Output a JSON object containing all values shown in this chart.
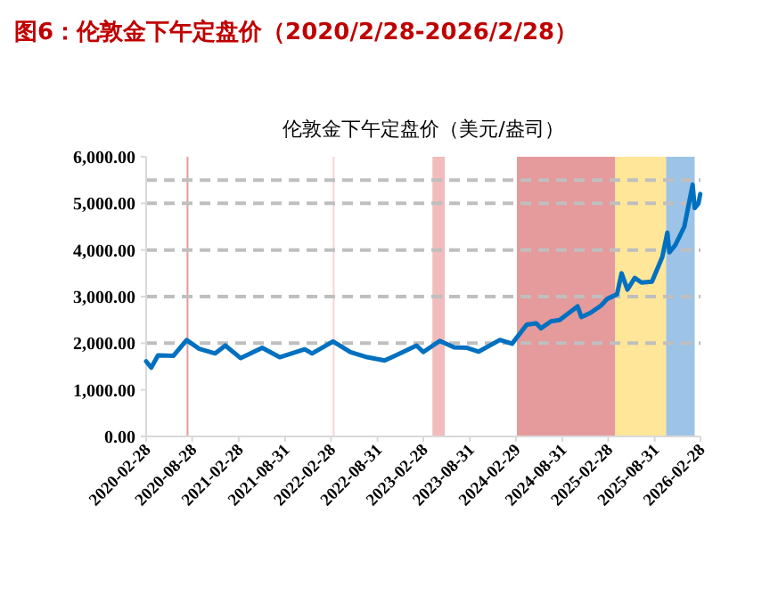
{
  "chart_data": {
    "type": "line",
    "title": "图6：伦敦金下午定盘价（2020/2/28-2026/2/28）",
    "subtitle": "伦敦金下午定盘价（美元/盎司）",
    "x": [
      "2020-02-28",
      "2020-03-19",
      "2020-04-15",
      "2020-06-15",
      "2020-08-06",
      "2020-09-25",
      "2020-11-27",
      "2021-01-06",
      "2021-03-08",
      "2021-06-01",
      "2021-08-09",
      "2021-11-16",
      "2021-12-15",
      "2022-03-08",
      "2022-05-16",
      "2022-07-21",
      "2022-09-28",
      "2022-11-15",
      "2023-02-01",
      "2023-02-28",
      "2023-05-04",
      "2023-06-30",
      "2023-08-21",
      "2023-10-05",
      "2023-12-28",
      "2024-02-14",
      "2024-04-12",
      "2024-05-20",
      "2024-06-07",
      "2024-07-17",
      "2024-08-20",
      "2024-10-30",
      "2024-11-14",
      "2024-12-20",
      "2025-01-31",
      "2025-02-24",
      "2025-04-04",
      "2025-04-22",
      "2025-05-15",
      "2025-06-13",
      "2025-07-10",
      "2025-08-20",
      "2025-09-30",
      "2025-10-20",
      "2025-10-28",
      "2025-11-20",
      "2025-12-26",
      "2026-01-28",
      "2026-02-05",
      "2026-02-20",
      "2026-02-27"
    ],
    "series": [
      {
        "color": "#0070c0",
        "values": [
          1610,
          1475,
          1740,
          1730,
          2067,
          1880,
          1780,
          1950,
          1680,
          1900,
          1700,
          1870,
          1780,
          2039,
          1810,
          1700,
          1630,
          1750,
          1950,
          1810,
          2050,
          1910,
          1900,
          1820,
          2070,
          1990,
          2400,
          2427,
          2320,
          2470,
          2500,
          2790,
          2560,
          2650,
          2810,
          2950,
          3050,
          3500,
          3150,
          3400,
          3300,
          3320,
          3850,
          4370,
          3950,
          4100,
          4500,
          5400,
          4900,
          5000,
          5200
        ]
      }
    ],
    "xlim": [
      "2020-02-28",
      "2026-02-28"
    ],
    "xticks": [
      {
        "value": "2020-02-28",
        "label": "2020-02-28"
      },
      {
        "value": "2020-08-28",
        "label": "2020-08-28"
      },
      {
        "value": "2021-02-28",
        "label": "2021-02-28"
      },
      {
        "value": "2021-08-31",
        "label": "2021-08-31"
      },
      {
        "value": "2022-02-28",
        "label": "2022-02-28"
      },
      {
        "value": "2022-08-31",
        "label": "2022-08-31"
      },
      {
        "value": "2023-02-28",
        "label": "2023-02-28"
      },
      {
        "value": "2023-08-31",
        "label": "2023-08-31"
      },
      {
        "value": "2024-02-29",
        "label": "2024-02-29"
      },
      {
        "value": "2024-08-31",
        "label": "2024-08-31"
      },
      {
        "value": "2025-02-28",
        "label": "2025-02-28"
      },
      {
        "value": "2025-08-31",
        "label": "2025-08-31"
      },
      {
        "value": "2026-02-28",
        "label": "2026-02-28"
      }
    ],
    "ylim": [
      0,
      6000
    ],
    "yticks": [
      {
        "value": 0,
        "label": "0.00"
      },
      {
        "value": 1000,
        "label": "1,000.00"
      },
      {
        "value": 2000,
        "label": "2,000.00"
      },
      {
        "value": 3000,
        "label": "3,000.00"
      },
      {
        "value": 4000,
        "label": "4,000.00"
      },
      {
        "value": 5000,
        "label": "5,000.00"
      },
      {
        "value": 6000,
        "label": "6,000.00"
      }
    ],
    "ref_lines": [
      {
        "axis": "y",
        "value": 2000,
        "color": "#bfbfbf",
        "line_style": "dashed"
      },
      {
        "axis": "y",
        "value": 3000,
        "color": "#bfbfbf",
        "line_style": "dashed"
      },
      {
        "axis": "y",
        "value": 4000,
        "color": "#bfbfbf",
        "line_style": "dashed"
      },
      {
        "axis": "y",
        "value": 5000,
        "color": "#bfbfbf",
        "line_style": "dashed"
      },
      {
        "axis": "y",
        "value": 5500,
        "color": "#bfbfbf",
        "line_style": "dashed"
      }
    ],
    "bands": [
      {
        "axis": "x",
        "from": "2020-08-06",
        "to": "2020-08-13",
        "color": "#e59a9c"
      },
      {
        "axis": "x",
        "from": "2022-03-07",
        "to": "2022-03-10",
        "color": "#f6d5d5"
      },
      {
        "axis": "x",
        "from": "2023-04-05",
        "to": "2023-05-24",
        "color": "#f2bcbc"
      },
      {
        "axis": "x",
        "from": "2024-03-04",
        "to": "2025-03-28",
        "color": "#e59a9c"
      },
      {
        "axis": "x",
        "from": "2025-03-28",
        "to": "2025-10-15",
        "color": "#ffe699"
      },
      {
        "axis": "x",
        "from": "2025-10-15",
        "to": "2026-02-05",
        "color": "#9dc3e6"
      }
    ]
  }
}
